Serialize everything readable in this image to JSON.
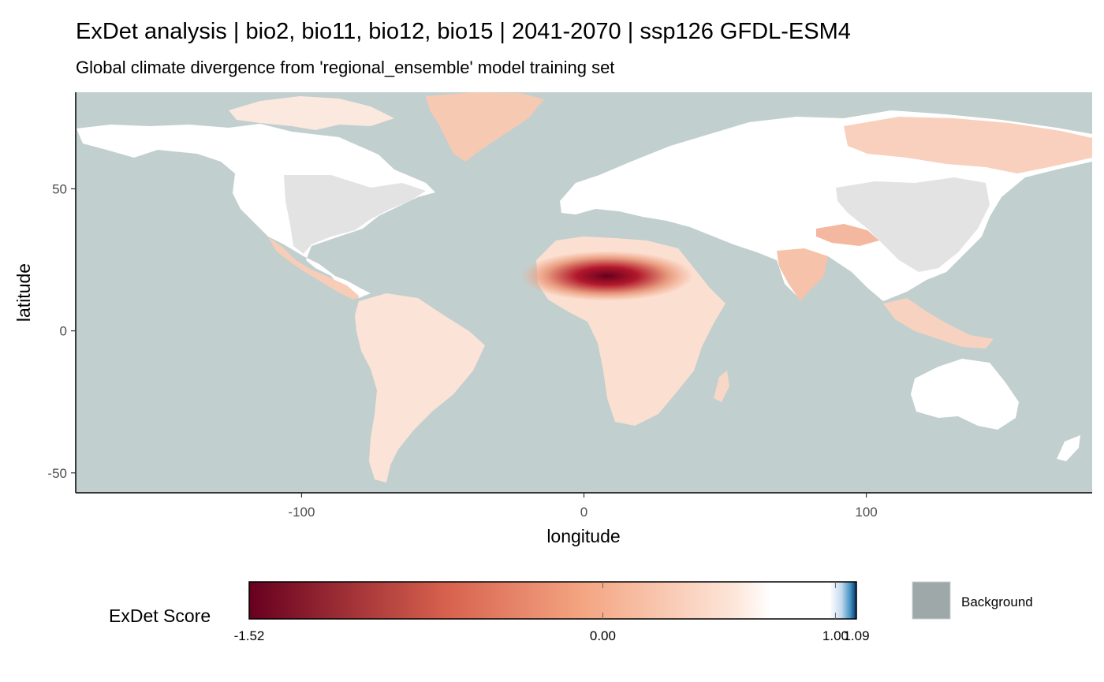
{
  "title": "ExDet analysis | bio2, bio11, bio12, bio15 | 2041-2070 | ssp126 GFDL-ESM4",
  "subtitle": "Global climate divergence from 'regional_ensemble' model training set",
  "chart_data": {
    "type": "heatmap",
    "xlabel": "longitude",
    "ylabel": "latitude",
    "xlim": [
      -180,
      180
    ],
    "ylim": [
      -57,
      84
    ],
    "x_ticks": [
      {
        "value": -100,
        "label": "-100"
      },
      {
        "value": 0,
        "label": "0"
      },
      {
        "value": 100,
        "label": "100"
      }
    ],
    "y_ticks": [
      {
        "value": -50,
        "label": "-50"
      },
      {
        "value": 0,
        "label": "0"
      },
      {
        "value": 50,
        "label": "50"
      }
    ],
    "grid": false,
    "legend": {
      "position": "bottom",
      "title": "ExDet Score",
      "min": -1.52,
      "mid": 0.0,
      "max": 1.09,
      "breaks": [
        {
          "value": -1.52,
          "label": "-1.52"
        },
        {
          "value": 0.0,
          "label": "0.00"
        },
        {
          "value": 1.0,
          "label": "1.00"
        },
        {
          "value": 1.09,
          "label": "1.09"
        }
      ],
      "colors": {
        "low": "#67001f",
        "mid_low": "#f4a582",
        "zero": "#ffffff",
        "high": "#053061"
      },
      "background_key": {
        "label": "Background",
        "color": "#9ea8a8"
      }
    },
    "colors": {
      "background": "#c2cfcf",
      "training_region": "#e3e3e3",
      "no_divergence": "#ffffff",
      "divergence": "#f4a582"
    }
  }
}
